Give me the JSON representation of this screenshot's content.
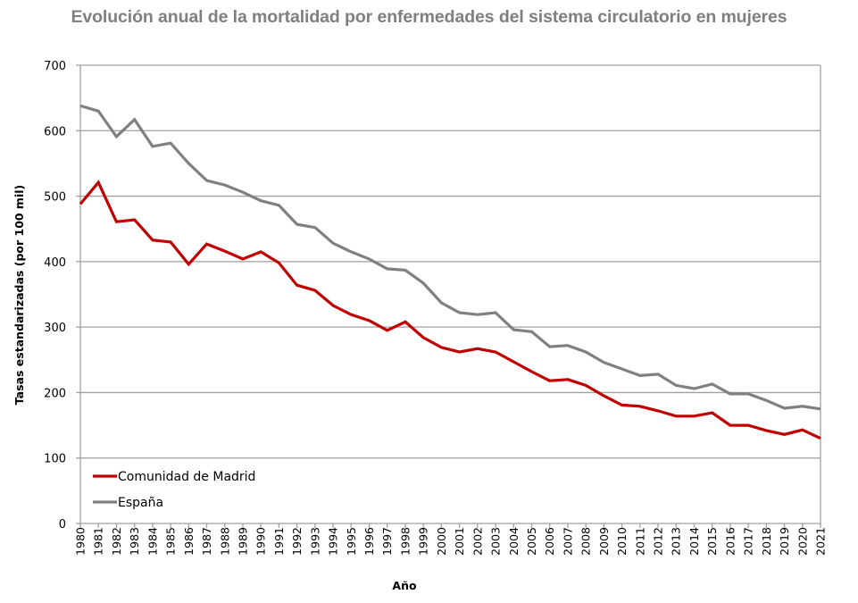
{
  "chart_data": {
    "type": "line",
    "title": "Evolución anual de la mortalidad por enfermedades del sistema circulatorio en mujeres",
    "xlabel": "Año",
    "ylabel": "Tasas estandarizadas (por 100 mil)",
    "ylim": [
      0,
      700
    ],
    "yticks": [
      "0",
      "100",
      "200",
      "300",
      "400",
      "500",
      "600",
      "700"
    ],
    "ytick_values": [
      0,
      100,
      200,
      300,
      400,
      500,
      600,
      700
    ],
    "grid": true,
    "legend_position": "bottom-left",
    "x": [
      "1980",
      "1981",
      "1982",
      "1983",
      "1984",
      "1985",
      "1986",
      "1987",
      "1988",
      "1989",
      "1990",
      "1991",
      "1992",
      "1993",
      "1994",
      "1995",
      "1996",
      "1997",
      "1998",
      "1999",
      "2000",
      "2001",
      "2002",
      "2003",
      "2004",
      "2005",
      "2006",
      "2007",
      "2008",
      "2009",
      "2010",
      "2011",
      "2012",
      "2013",
      "2014",
      "2015",
      "2016",
      "2017",
      "2018",
      "2019",
      "2020",
      "2021"
    ],
    "series": [
      {
        "name": "Comunidad de Madrid",
        "color": "#c00000",
        "values": [
          488,
          521,
          461,
          464,
          433,
          430,
          396,
          427,
          416,
          404,
          415,
          398,
          364,
          356,
          333,
          319,
          310,
          295,
          308,
          284,
          269,
          262,
          267,
          262,
          247,
          232,
          218,
          220,
          211,
          195,
          181,
          179,
          172,
          164,
          164,
          169,
          150,
          150,
          142,
          136,
          143,
          130
        ]
      },
      {
        "name": "España",
        "color": "#808080",
        "values": [
          638,
          630,
          591,
          617,
          576,
          581,
          550,
          524,
          517,
          506,
          493,
          486,
          457,
          452,
          428,
          415,
          404,
          389,
          387,
          367,
          337,
          322,
          319,
          322,
          296,
          293,
          270,
          272,
          262,
          246,
          236,
          226,
          228,
          211,
          206,
          213,
          198,
          198,
          188,
          176,
          179,
          175
        ]
      }
    ]
  }
}
